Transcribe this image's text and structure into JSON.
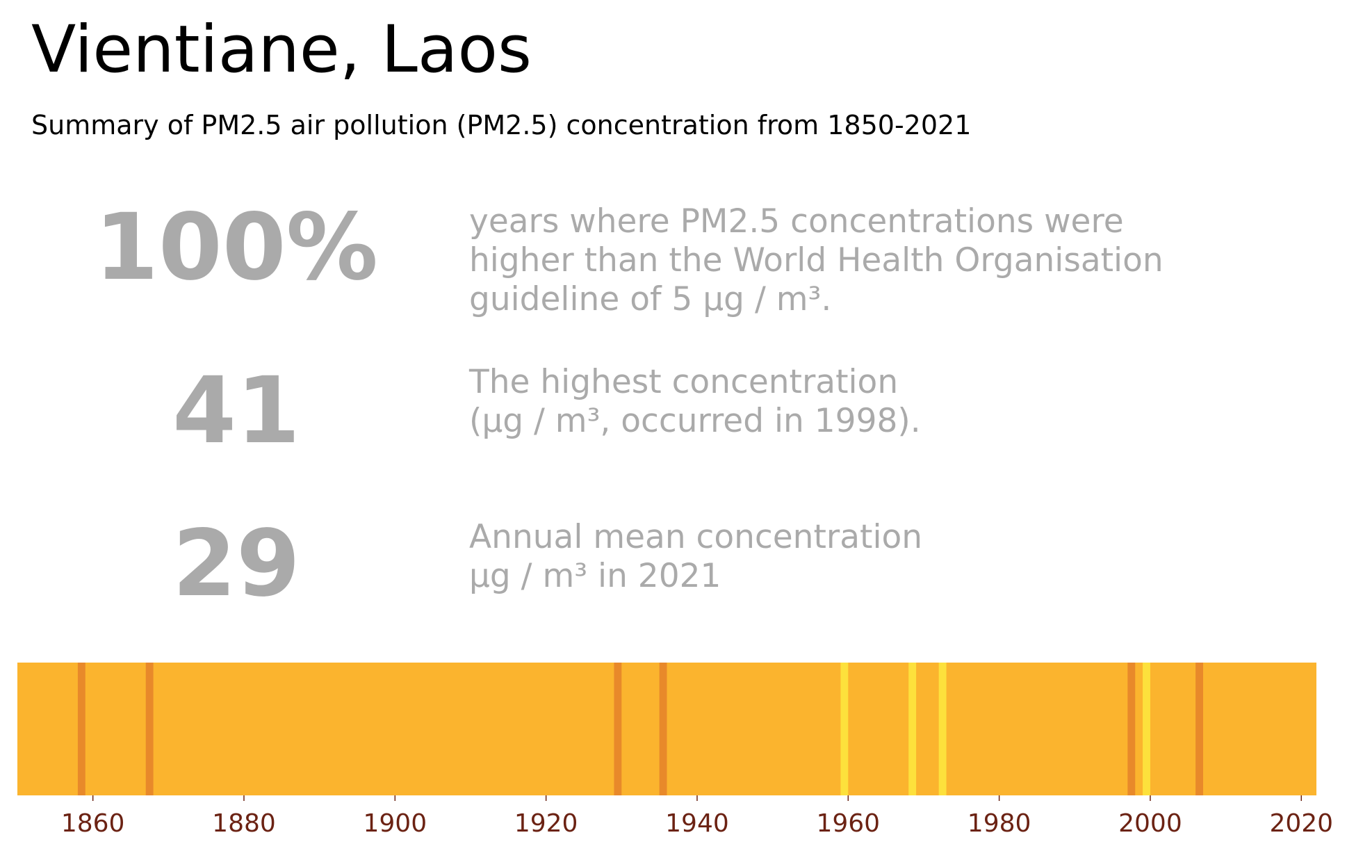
{
  "title": "Vientiane, Laos",
  "subtitle": "Summary of PM2.5 air pollution (PM2.5) concentration from 1850-2021",
  "stats": [
    {
      "value": "100%",
      "lines": [
        "years where PM2.5 concentrations were",
        "higher than the World Health Organisation",
        "guideline of 5 µg / m³."
      ]
    },
    {
      "value": "41",
      "lines": [
        "The highest concentration",
        "(µg / m³, occurred in 1998)."
      ]
    },
    {
      "value": "29",
      "lines": [
        "Annual mean concentration",
        "µg / m³ in 2021"
      ]
    }
  ],
  "colors": {
    "base_fill": "#fbb42e",
    "darker_year": "#e8892a",
    "lighter_year": "#fde13c",
    "tick_label": "#6b2213",
    "stat_text": "#aaaaaa"
  },
  "chart_data": {
    "type": "heatmap",
    "title": "",
    "xlabel": "",
    "ylabel": "",
    "xlim": [
      1850,
      2022
    ],
    "xticks": [
      "1860",
      "1880",
      "1900",
      "1920",
      "1940",
      "1960",
      "1980",
      "2000",
      "2020"
    ],
    "grid": false,
    "legend": "none",
    "year_range": [
      1850,
      2021
    ],
    "base_category": "base",
    "highlighted_years": [
      {
        "year": 1858,
        "category": "darker"
      },
      {
        "year": 1867,
        "category": "darker"
      },
      {
        "year": 1929,
        "category": "darker"
      },
      {
        "year": 1935,
        "category": "darker"
      },
      {
        "year": 1959,
        "category": "lighter"
      },
      {
        "year": 1968,
        "category": "lighter"
      },
      {
        "year": 1972,
        "category": "lighter"
      },
      {
        "year": 1997,
        "category": "darker"
      },
      {
        "year": 1999,
        "category": "lighter"
      },
      {
        "year": 2006,
        "category": "darker"
      }
    ]
  }
}
